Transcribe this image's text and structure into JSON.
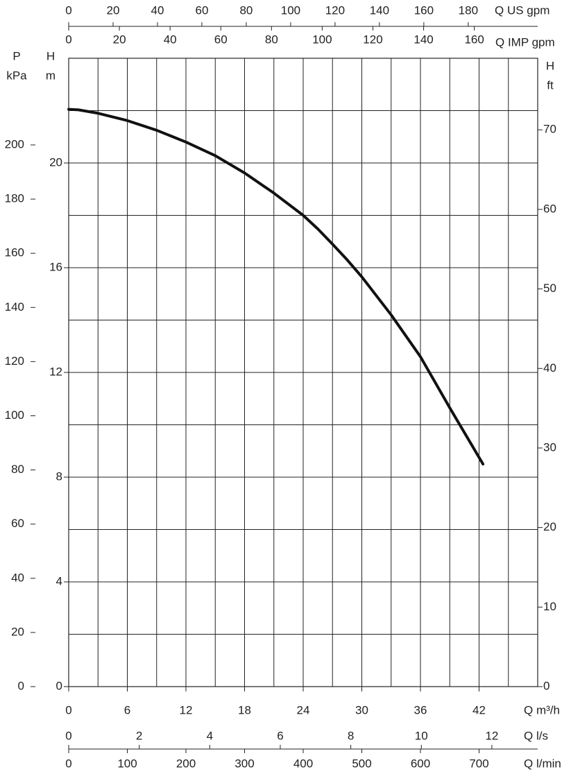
{
  "chart_data": {
    "type": "line",
    "xlabel": "Q m³/h",
    "ylabel": [
      "H",
      "m"
    ],
    "xlim": [
      0,
      48
    ],
    "ylim": [
      0,
      24
    ],
    "xticks": [
      0,
      6,
      12,
      18,
      24,
      30,
      36,
      42
    ],
    "yticks": [
      0,
      4,
      8,
      12,
      16,
      20
    ],
    "xgrid": [
      0,
      3,
      6,
      9,
      12,
      15,
      18,
      21,
      24,
      27,
      30,
      33,
      36,
      39,
      42,
      45,
      48
    ],
    "ygrid": [
      0,
      2,
      4,
      6,
      8,
      10,
      12,
      14,
      16,
      18,
      20,
      22,
      24
    ],
    "grid": true,
    "x": [
      0,
      1,
      3,
      6,
      9,
      12,
      15,
      18,
      21,
      24,
      25.5,
      27,
      28.5,
      30,
      33,
      36,
      39,
      42.4
    ],
    "series": [
      {
        "color": "#111111",
        "values": [
          22.05,
          22.03,
          21.9,
          21.62,
          21.25,
          20.8,
          20.28,
          19.62,
          18.85,
          18.0,
          17.48,
          16.9,
          16.3,
          15.65,
          14.2,
          12.6,
          10.65,
          8.5
        ]
      }
    ],
    "axes": [
      {
        "position": "top-upper",
        "label": "Q US gpm",
        "lim": [
          0,
          211.3
        ],
        "ticks": [
          0,
          20,
          40,
          60,
          80,
          100,
          120,
          140,
          160,
          180
        ]
      },
      {
        "position": "top-lower",
        "label": "Q IMP gpm",
        "lim": [
          0,
          185
        ],
        "ticks": [
          0,
          20,
          40,
          60,
          80,
          100,
          120,
          140,
          160
        ]
      },
      {
        "position": "bottom-upper",
        "label": "Q l/s",
        "lim": [
          0,
          13.3
        ],
        "ticks": [
          0,
          2,
          4,
          6,
          8,
          10,
          12
        ]
      },
      {
        "position": "bottom-lower",
        "label": "Q l/min",
        "lim": [
          0,
          800
        ],
        "ticks": [
          0,
          100,
          200,
          300,
          400,
          500,
          600,
          700
        ]
      },
      {
        "position": "left",
        "label": [
          "P",
          "kPa"
        ],
        "lim": [
          0,
          232
        ],
        "ticks": [
          0,
          20,
          40,
          60,
          80,
          100,
          120,
          140,
          160,
          180,
          200
        ]
      },
      {
        "position": "right",
        "label": [
          "H",
          "ft"
        ],
        "lim": [
          0,
          79
        ],
        "ticks": [
          0,
          10,
          20,
          30,
          40,
          50,
          60,
          70
        ]
      }
    ]
  }
}
